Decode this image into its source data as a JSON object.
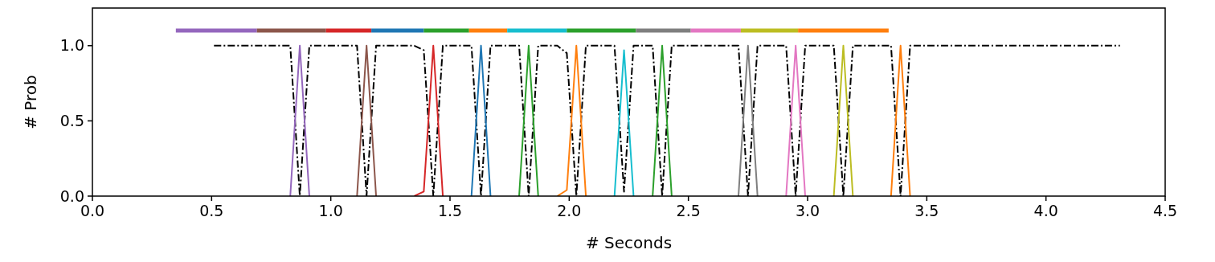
{
  "chart_data": {
    "type": "line",
    "xlabel": "# Seconds",
    "ylabel": "# Prob",
    "xlim": [
      0,
      4.5
    ],
    "ylim": [
      0,
      1.25
    ],
    "xticks": [
      {
        "value": 0,
        "label": "0.0"
      },
      {
        "value": 0.5,
        "label": "0.5"
      },
      {
        "value": 1,
        "label": "1.0"
      },
      {
        "value": 1.5,
        "label": "1.5"
      },
      {
        "value": 2,
        "label": "2.0"
      },
      {
        "value": 2.5,
        "label": "2.5"
      },
      {
        "value": 3,
        "label": "3.0"
      },
      {
        "value": 3.5,
        "label": "3.5"
      },
      {
        "value": 4,
        "label": "4.0"
      },
      {
        "value": 4.5,
        "label": "4.5"
      }
    ],
    "yticks": [
      {
        "value": 0,
        "label": "0.0"
      },
      {
        "value": 0.5,
        "label": "0.5"
      },
      {
        "value": 1,
        "label": "1.0"
      }
    ],
    "grid": false,
    "marker": "none",
    "series": [
      {
        "color": "#000000",
        "line_style": "dashdot",
        "x": [
          0.51,
          0.83,
          0.87,
          0.91,
          1.11,
          1.15,
          1.19,
          1.35,
          1.39,
          1.43,
          1.47,
          1.59,
          1.63,
          1.67,
          1.79,
          1.83,
          1.87,
          1.95,
          1.99,
          2.03,
          2.07,
          2.19,
          2.23,
          2.27,
          2.35,
          2.39,
          2.43,
          2.71,
          2.75,
          2.79,
          2.91,
          2.95,
          2.99,
          3.11,
          3.15,
          3.19,
          3.35,
          3.39,
          3.43,
          4.31
        ],
        "values": [
          1,
          1,
          0,
          1,
          1,
          0,
          1,
          1,
          0.97,
          0,
          1,
          1,
          0,
          1,
          1,
          0,
          1,
          1,
          0.95,
          0,
          1,
          1,
          0.03,
          1,
          1,
          0,
          1,
          1,
          0,
          1,
          1,
          0,
          1,
          1,
          0,
          1,
          1,
          0,
          1,
          1
        ]
      },
      {
        "color": "#9467bd",
        "x": [
          0.83,
          0.87,
          0.91
        ],
        "values": [
          0,
          1,
          0
        ]
      },
      {
        "color": "#8c564b",
        "x": [
          1.11,
          1.15,
          1.19
        ],
        "values": [
          0,
          1,
          0
        ]
      },
      {
        "color": "#d62728",
        "x": [
          1.35,
          1.39,
          1.43,
          1.47
        ],
        "values": [
          0,
          0.03,
          1,
          0
        ]
      },
      {
        "color": "#1f77b4",
        "x": [
          1.59,
          1.63,
          1.67
        ],
        "values": [
          0,
          1,
          0
        ]
      },
      {
        "color": "#2ca02c",
        "x": [
          1.79,
          1.83,
          1.87
        ],
        "values": [
          0,
          1,
          0
        ]
      },
      {
        "color": "#ff7f0e",
        "x": [
          1.95,
          1.99,
          2.03,
          2.07
        ],
        "values": [
          0,
          0.04,
          1,
          0
        ]
      },
      {
        "color": "#17becf",
        "x": [
          2.19,
          2.23,
          2.27
        ],
        "values": [
          0,
          0.97,
          0
        ]
      },
      {
        "color": "#2ca02c",
        "x": [
          2.35,
          2.39,
          2.43
        ],
        "values": [
          0,
          1,
          0
        ]
      },
      {
        "color": "#7f7f7f",
        "x": [
          2.71,
          2.75,
          2.79
        ],
        "values": [
          0,
          1,
          0
        ]
      },
      {
        "color": "#e377c2",
        "x": [
          2.91,
          2.95,
          2.99
        ],
        "values": [
          0,
          1,
          0
        ]
      },
      {
        "color": "#bcbd22",
        "x": [
          3.11,
          3.15,
          3.19
        ],
        "values": [
          0,
          1,
          0
        ]
      },
      {
        "color": "#ff7f0e",
        "x": [
          3.35,
          3.39,
          3.43
        ],
        "values": [
          0,
          1,
          0
        ]
      },
      {
        "color": "#9467bd",
        "x": [
          0.35,
          0.69
        ],
        "values": [
          1.1,
          1.1
        ]
      },
      {
        "color": "#8c564b",
        "x": [
          0.69,
          0.98
        ],
        "values": [
          1.1,
          1.1
        ]
      },
      {
        "color": "#d62728",
        "x": [
          0.98,
          1.17
        ],
        "values": [
          1.1,
          1.1
        ]
      },
      {
        "color": "#1f77b4",
        "x": [
          1.17,
          1.39
        ],
        "values": [
          1.1,
          1.1
        ]
      },
      {
        "color": "#2ca02c",
        "x": [
          1.39,
          1.58
        ],
        "values": [
          1.1,
          1.1
        ]
      },
      {
        "color": "#ff7f0e",
        "x": [
          1.58,
          1.74
        ],
        "values": [
          1.1,
          1.1
        ]
      },
      {
        "color": "#17becf",
        "x": [
          1.74,
          1.99
        ],
        "values": [
          1.1,
          1.1
        ]
      },
      {
        "color": "#2ca02c",
        "x": [
          1.99,
          2.28
        ],
        "values": [
          1.1,
          1.1
        ]
      },
      {
        "color": "#7f7f7f",
        "x": [
          2.28,
          2.51
        ],
        "values": [
          1.1,
          1.1
        ]
      },
      {
        "color": "#e377c2",
        "x": [
          2.51,
          2.72
        ],
        "values": [
          1.1,
          1.1
        ]
      },
      {
        "color": "#bcbd22",
        "x": [
          2.72,
          2.96
        ],
        "values": [
          1.1,
          1.1
        ]
      },
      {
        "color": "#ff7f0e",
        "x": [
          2.96,
          3.34
        ],
        "values": [
          1.1,
          1.1
        ]
      }
    ]
  }
}
